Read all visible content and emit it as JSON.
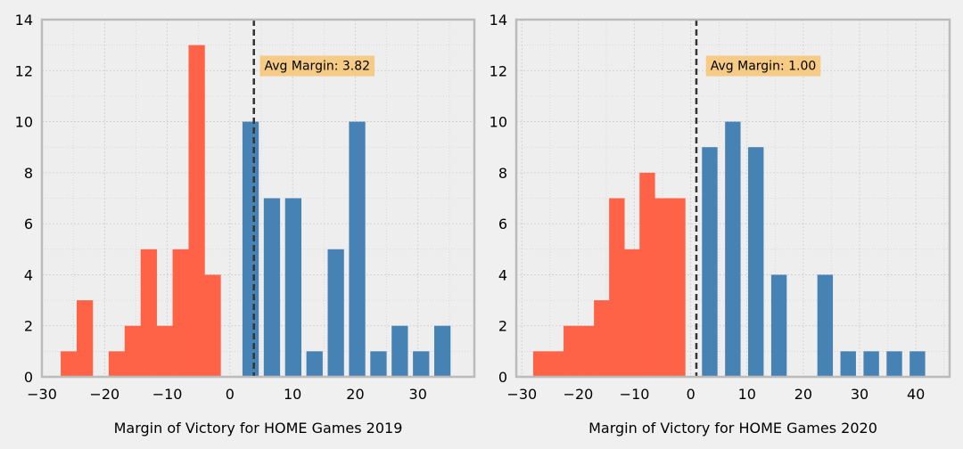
{
  "colors": {
    "background": "#f0f0f0",
    "plot_background": "#eeeeee",
    "negative_bars": "#ff6347",
    "positive_bars": "#4682b4",
    "annotation_box": "#f5c77a",
    "average_line": "#333333",
    "grid": "#cccccc",
    "frame": "#bbbbbb"
  },
  "chart_data": [
    {
      "type": "bar",
      "xlabel": "Margin of Victory for HOME Games 2019",
      "ylabel": "",
      "title": "",
      "xlim": [
        -30,
        39
      ],
      "ylim": [
        0,
        14
      ],
      "xticks": [
        -30,
        -20,
        -10,
        0,
        10,
        20,
        30
      ],
      "yticks": [
        0,
        2,
        4,
        6,
        8,
        10,
        12,
        14
      ],
      "bin_width": 2.55,
      "average": 3.82,
      "annotation": "Avg Margin: 3.82",
      "annotation_x": 5.5,
      "annotation_y": 12.2,
      "series": [
        {
          "color_key": "negative_bars",
          "bins": [
            [
              -27,
              1
            ],
            [
              -24.45,
              3
            ],
            [
              -19.35,
              1
            ],
            [
              -16.8,
              2
            ],
            [
              -14.25,
              5
            ],
            [
              -11.7,
              2
            ],
            [
              -9.15,
              5
            ],
            [
              -6.6,
              13
            ],
            [
              -4.05,
              4
            ]
          ]
        },
        {
          "color_key": "positive_bars",
          "bins": [
            [
              2,
              10
            ],
            [
              5.4,
              7
            ],
            [
              8.8,
              7
            ],
            [
              12.2,
              1
            ],
            [
              15.6,
              5
            ],
            [
              19,
              10
            ],
            [
              22.4,
              1
            ],
            [
              25.8,
              2
            ],
            [
              29.2,
              1
            ],
            [
              32.6,
              2
            ]
          ]
        }
      ]
    },
    {
      "type": "bar",
      "xlabel": "Margin of Victory for HOME Games 2020",
      "ylabel": "",
      "title": "",
      "xlim": [
        -31,
        46
      ],
      "ylim": [
        0,
        14
      ],
      "xticks": [
        -30,
        -20,
        -10,
        0,
        10,
        20,
        30,
        40
      ],
      "yticks": [
        0,
        2,
        4,
        6,
        8,
        10,
        12,
        14
      ],
      "bin_width": 2.7,
      "average": 1.0,
      "annotation": "Avg Margin: 1.00",
      "annotation_x": 3.5,
      "annotation_y": 12.2,
      "series": [
        {
          "color_key": "negative_bars",
          "bins": [
            [
              -28,
              1
            ],
            [
              -25.3,
              1
            ],
            [
              -22.6,
              2
            ],
            [
              -19.9,
              2
            ],
            [
              -17.2,
              3
            ],
            [
              -14.5,
              7
            ],
            [
              -11.8,
              5
            ],
            [
              -9.1,
              8
            ],
            [
              -6.4,
              7
            ],
            [
              -3.7,
              7
            ]
          ]
        },
        {
          "color_key": "positive_bars",
          "bins": [
            [
              2,
              9
            ],
            [
              6.1,
              10
            ],
            [
              10.2,
              9
            ],
            [
              14.3,
              4
            ],
            [
              18.4,
              0
            ],
            [
              22.5,
              4
            ],
            [
              26.6,
              1
            ],
            [
              30.7,
              1
            ],
            [
              34.8,
              1
            ],
            [
              38.9,
              1
            ]
          ]
        }
      ]
    }
  ]
}
